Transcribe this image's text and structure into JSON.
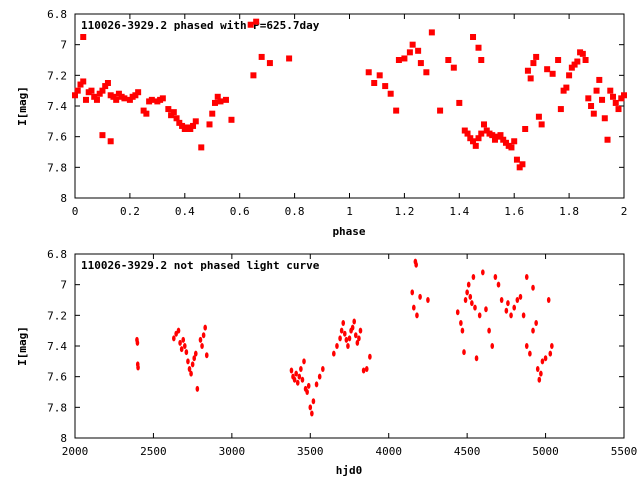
{
  "chart_data": [
    {
      "type": "scatter",
      "title": "110026-3929.2 phased with P=625.7day",
      "xlabel": "phase",
      "ylabel": "I[mag]",
      "xlim": [
        0,
        2
      ],
      "ylim": [
        8,
        6.8
      ],
      "y_inverted": true,
      "grid": false,
      "color": "#ff0000",
      "x_ticks": [
        "0",
        "0.2",
        "0.4",
        "0.6",
        "0.8",
        "1",
        "1.2",
        "1.4",
        "1.6",
        "1.8",
        "2"
      ],
      "y_ticks": [
        "6.8",
        "7",
        "7.2",
        "7.4",
        "7.6",
        "7.8",
        "8"
      ],
      "series": [
        {
          "points": [
            [
              0.0,
              7.33
            ],
            [
              0.01,
              7.3
            ],
            [
              0.02,
              7.26
            ],
            [
              0.03,
              7.24
            ],
            [
              0.04,
              7.36
            ],
            [
              0.05,
              7.31
            ],
            [
              0.06,
              7.3
            ],
            [
              0.07,
              7.34
            ],
            [
              0.08,
              7.36
            ],
            [
              0.09,
              7.32
            ],
            [
              0.1,
              7.3
            ],
            [
              0.11,
              7.27
            ],
            [
              0.12,
              7.25
            ],
            [
              0.13,
              7.33
            ],
            [
              0.14,
              7.34
            ],
            [
              0.15,
              7.36
            ],
            [
              0.16,
              7.32
            ],
            [
              0.17,
              7.34
            ],
            [
              0.18,
              7.35
            ],
            [
              0.2,
              7.36
            ],
            [
              0.21,
              7.34
            ],
            [
              0.22,
              7.33
            ],
            [
              0.23,
              7.31
            ],
            [
              0.25,
              7.43
            ],
            [
              0.26,
              7.45
            ],
            [
              0.27,
              7.37
            ],
            [
              0.28,
              7.36
            ],
            [
              0.3,
              7.37
            ],
            [
              0.31,
              7.36
            ],
            [
              0.32,
              7.35
            ],
            [
              0.34,
              7.42
            ],
            [
              0.35,
              7.46
            ],
            [
              0.36,
              7.44
            ],
            [
              0.37,
              7.48
            ],
            [
              0.38,
              7.51
            ],
            [
              0.39,
              7.53
            ],
            [
              0.4,
              7.55
            ],
            [
              0.41,
              7.54
            ],
            [
              0.42,
              7.55
            ],
            [
              0.43,
              7.53
            ],
            [
              0.44,
              7.5
            ],
            [
              0.03,
              6.95
            ],
            [
              0.1,
              7.59
            ],
            [
              0.13,
              7.63
            ],
            [
              0.46,
              7.67
            ],
            [
              0.49,
              7.52
            ],
            [
              0.5,
              7.45
            ],
            [
              0.51,
              7.38
            ],
            [
              0.52,
              7.34
            ],
            [
              0.53,
              7.37
            ],
            [
              0.55,
              7.36
            ],
            [
              0.57,
              7.49
            ],
            [
              0.64,
              6.87
            ],
            [
              0.66,
              6.85
            ],
            [
              0.68,
              7.08
            ],
            [
              0.71,
              7.12
            ],
            [
              0.65,
              7.2
            ],
            [
              0.78,
              7.09
            ],
            [
              1.07,
              7.18
            ],
            [
              1.09,
              7.25
            ],
            [
              1.11,
              7.2
            ],
            [
              1.13,
              7.27
            ],
            [
              1.15,
              7.32
            ],
            [
              1.17,
              7.43
            ],
            [
              1.18,
              7.1
            ],
            [
              1.2,
              7.09
            ],
            [
              1.22,
              7.05
            ],
            [
              1.23,
              7.0
            ],
            [
              1.25,
              7.04
            ],
            [
              1.26,
              7.12
            ],
            [
              1.28,
              7.18
            ],
            [
              1.3,
              6.92
            ],
            [
              1.33,
              7.43
            ],
            [
              1.36,
              7.1
            ],
            [
              1.38,
              7.15
            ],
            [
              1.4,
              7.38
            ],
            [
              1.42,
              7.56
            ],
            [
              1.43,
              7.58
            ],
            [
              1.44,
              7.61
            ],
            [
              1.45,
              7.63
            ],
            [
              1.46,
              7.66
            ],
            [
              1.47,
              7.61
            ],
            [
              1.48,
              7.58
            ],
            [
              1.49,
              7.52
            ],
            [
              1.5,
              7.56
            ],
            [
              1.51,
              7.58
            ],
            [
              1.52,
              7.59
            ],
            [
              1.53,
              7.62
            ],
            [
              1.54,
              7.6
            ],
            [
              1.55,
              7.59
            ],
            [
              1.56,
              7.62
            ],
            [
              1.57,
              7.64
            ],
            [
              1.58,
              7.66
            ],
            [
              1.59,
              7.67
            ],
            [
              1.6,
              7.63
            ],
            [
              1.61,
              7.75
            ],
            [
              1.62,
              7.8
            ],
            [
              1.63,
              7.78
            ],
            [
              1.64,
              7.55
            ],
            [
              1.45,
              6.95
            ],
            [
              1.47,
              7.02
            ],
            [
              1.48,
              7.1
            ],
            [
              1.65,
              7.17
            ],
            [
              1.66,
              7.22
            ],
            [
              1.67,
              7.12
            ],
            [
              1.68,
              7.08
            ],
            [
              1.69,
              7.47
            ],
            [
              1.7,
              7.52
            ],
            [
              1.72,
              7.16
            ],
            [
              1.74,
              7.19
            ],
            [
              1.76,
              7.1
            ],
            [
              1.77,
              7.42
            ],
            [
              1.78,
              7.3
            ],
            [
              1.79,
              7.28
            ],
            [
              1.8,
              7.2
            ],
            [
              1.81,
              7.15
            ],
            [
              1.82,
              7.13
            ],
            [
              1.83,
              7.11
            ],
            [
              1.84,
              7.05
            ],
            [
              1.85,
              7.06
            ],
            [
              1.86,
              7.1
            ],
            [
              1.87,
              7.35
            ],
            [
              1.88,
              7.4
            ],
            [
              1.89,
              7.45
            ],
            [
              1.9,
              7.3
            ],
            [
              1.91,
              7.23
            ],
            [
              1.92,
              7.36
            ],
            [
              1.93,
              7.48
            ],
            [
              1.94,
              7.62
            ],
            [
              1.95,
              7.3
            ],
            [
              1.96,
              7.34
            ],
            [
              1.97,
              7.38
            ],
            [
              1.98,
              7.42
            ],
            [
              1.99,
              7.35
            ],
            [
              2.0,
              7.33
            ]
          ]
        }
      ]
    },
    {
      "type": "scatter",
      "title": "110026-3929.2 not phased light curve",
      "xlabel": "hjd0",
      "ylabel": "I[mag]",
      "xlim": [
        2000,
        5500
      ],
      "ylim": [
        8,
        6.8
      ],
      "y_inverted": true,
      "grid": false,
      "color": "#ff0000",
      "x_ticks": [
        "2000",
        "2500",
        "3000",
        "3500",
        "4000",
        "4500",
        "5000",
        "5500"
      ],
      "y_ticks": [
        "6.8",
        "7",
        "7.2",
        "7.4",
        "7.6",
        "7.8",
        "8"
      ],
      "series": [
        {
          "points": [
            [
              2395,
              7.36
            ],
            [
              2398,
              7.38
            ],
            [
              2400,
              7.52
            ],
            [
              2402,
              7.54
            ],
            [
              2630,
              7.35
            ],
            [
              2645,
              7.32
            ],
            [
              2660,
              7.3
            ],
            [
              2670,
              7.38
            ],
            [
              2680,
              7.42
            ],
            [
              2690,
              7.36
            ],
            [
              2700,
              7.4
            ],
            [
              2710,
              7.44
            ],
            [
              2720,
              7.5
            ],
            [
              2730,
              7.55
            ],
            [
              2740,
              7.58
            ],
            [
              2750,
              7.52
            ],
            [
              2760,
              7.48
            ],
            [
              2770,
              7.45
            ],
            [
              2780,
              7.68
            ],
            [
              2800,
              7.36
            ],
            [
              2810,
              7.4
            ],
            [
              2820,
              7.33
            ],
            [
              2830,
              7.28
            ],
            [
              2840,
              7.46
            ],
            [
              3380,
              7.56
            ],
            [
              3390,
              7.6
            ],
            [
              3400,
              7.62
            ],
            [
              3410,
              7.58
            ],
            [
              3420,
              7.64
            ],
            [
              3430,
              7.6
            ],
            [
              3440,
              7.55
            ],
            [
              3450,
              7.62
            ],
            [
              3460,
              7.5
            ],
            [
              3470,
              7.68
            ],
            [
              3480,
              7.7
            ],
            [
              3490,
              7.66
            ],
            [
              3500,
              7.8
            ],
            [
              3510,
              7.84
            ],
            [
              3520,
              7.76
            ],
            [
              3540,
              7.65
            ],
            [
              3560,
              7.6
            ],
            [
              3580,
              7.55
            ],
            [
              3650,
              7.45
            ],
            [
              3670,
              7.4
            ],
            [
              3690,
              7.35
            ],
            [
              3700,
              7.3
            ],
            [
              3710,
              7.25
            ],
            [
              3720,
              7.32
            ],
            [
              3730,
              7.36
            ],
            [
              3740,
              7.4
            ],
            [
              3750,
              7.35
            ],
            [
              3760,
              7.3
            ],
            [
              3770,
              7.28
            ],
            [
              3780,
              7.24
            ],
            [
              3790,
              7.33
            ],
            [
              3800,
              7.38
            ],
            [
              3810,
              7.35
            ],
            [
              3820,
              7.3
            ],
            [
              3840,
              7.56
            ],
            [
              3860,
              7.55
            ],
            [
              3880,
              7.47
            ],
            [
              4150,
              7.05
            ],
            [
              4160,
              7.15
            ],
            [
              4170,
              6.85
            ],
            [
              4175,
              6.87
            ],
            [
              4180,
              7.2
            ],
            [
              4200,
              7.08
            ],
            [
              4250,
              7.1
            ],
            [
              4440,
              7.18
            ],
            [
              4460,
              7.25
            ],
            [
              4470,
              7.3
            ],
            [
              4480,
              7.44
            ],
            [
              4490,
              7.1
            ],
            [
              4500,
              7.05
            ],
            [
              4510,
              7.0
            ],
            [
              4520,
              7.08
            ],
            [
              4530,
              7.12
            ],
            [
              4540,
              6.95
            ],
            [
              4550,
              7.15
            ],
            [
              4560,
              7.48
            ],
            [
              4580,
              7.2
            ],
            [
              4600,
              6.92
            ],
            [
              4620,
              7.16
            ],
            [
              4640,
              7.3
            ],
            [
              4660,
              7.4
            ],
            [
              4680,
              6.95
            ],
            [
              4700,
              7.0
            ],
            [
              4720,
              7.1
            ],
            [
              4750,
              7.17
            ],
            [
              4760,
              7.12
            ],
            [
              4780,
              7.2
            ],
            [
              4800,
              7.15
            ],
            [
              4820,
              7.1
            ],
            [
              4840,
              7.08
            ],
            [
              4860,
              7.2
            ],
            [
              4880,
              7.4
            ],
            [
              4900,
              7.45
            ],
            [
              4920,
              7.3
            ],
            [
              4940,
              7.25
            ],
            [
              4950,
              7.55
            ],
            [
              4960,
              7.62
            ],
            [
              4970,
              7.58
            ],
            [
              4980,
              7.5
            ],
            [
              5000,
              7.48
            ],
            [
              5020,
              7.1
            ],
            [
              5030,
              7.45
            ],
            [
              5040,
              7.4
            ],
            [
              4880,
              6.95
            ],
            [
              4920,
              7.02
            ]
          ]
        }
      ]
    }
  ]
}
